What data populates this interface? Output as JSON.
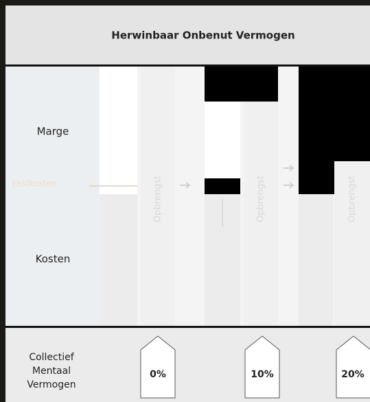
{
  "header": {
    "title": "Herwinbaar Onbenut Vermogen"
  },
  "row_labels": {
    "top": "Marge",
    "middle": "Fastkosten",
    "bottom": "Kosten"
  },
  "columns": [
    {
      "label": "Opbrengst"
    },
    {
      "label": "Opbrengst"
    },
    {
      "label": "Opbrengst"
    }
  ],
  "footer": {
    "label_lines": [
      "Collectief",
      "Mentaal",
      "Vermogen"
    ],
    "tags": [
      "0%",
      "10%",
      "20%"
    ]
  }
}
